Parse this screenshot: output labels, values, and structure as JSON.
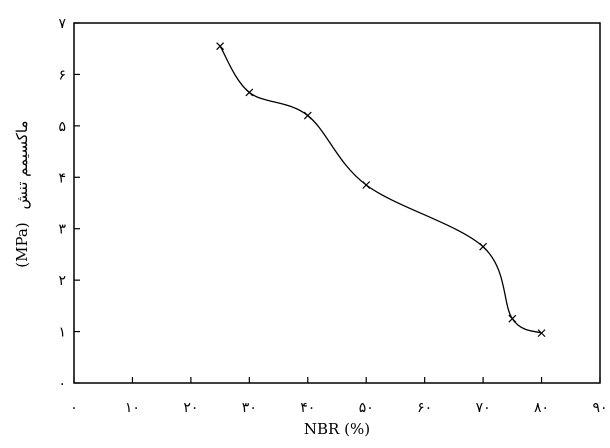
{
  "chart_data": {
    "type": "line",
    "xlabel": "NBR (%)",
    "ylabel_latin": "(MPa)",
    "ylabel_arabic": "ماکسیمم تنش",
    "xlim": [
      0,
      90
    ],
    "ylim": [
      0,
      7
    ],
    "x_ticks": [
      {
        "value": 0,
        "label": "۰"
      },
      {
        "value": 10,
        "label": "۱۰"
      },
      {
        "value": 20,
        "label": "۲۰"
      },
      {
        "value": 30,
        "label": "۳۰"
      },
      {
        "value": 40,
        "label": "۴۰"
      },
      {
        "value": 50,
        "label": "۵۰"
      },
      {
        "value": 60,
        "label": "۶۰"
      },
      {
        "value": 70,
        "label": "۷۰"
      },
      {
        "value": 80,
        "label": "۸۰"
      },
      {
        "value": 90,
        "label": "۹۰"
      }
    ],
    "y_ticks": [
      {
        "value": 0,
        "label": "۰"
      },
      {
        "value": 1,
        "label": "۱"
      },
      {
        "value": 2,
        "label": "۲"
      },
      {
        "value": 3,
        "label": "۳"
      },
      {
        "value": 4,
        "label": "۴"
      },
      {
        "value": 5,
        "label": "۵"
      },
      {
        "value": 6,
        "label": "۶"
      },
      {
        "value": 7,
        "label": "۷"
      }
    ],
    "x": [
      25,
      30,
      40,
      50,
      70,
      75,
      80
    ],
    "y": [
      6.55,
      5.65,
      5.2,
      3.85,
      2.65,
      1.25,
      0.97
    ],
    "marker": "x",
    "grid": false,
    "legend": "none",
    "line_color": "#000000"
  }
}
